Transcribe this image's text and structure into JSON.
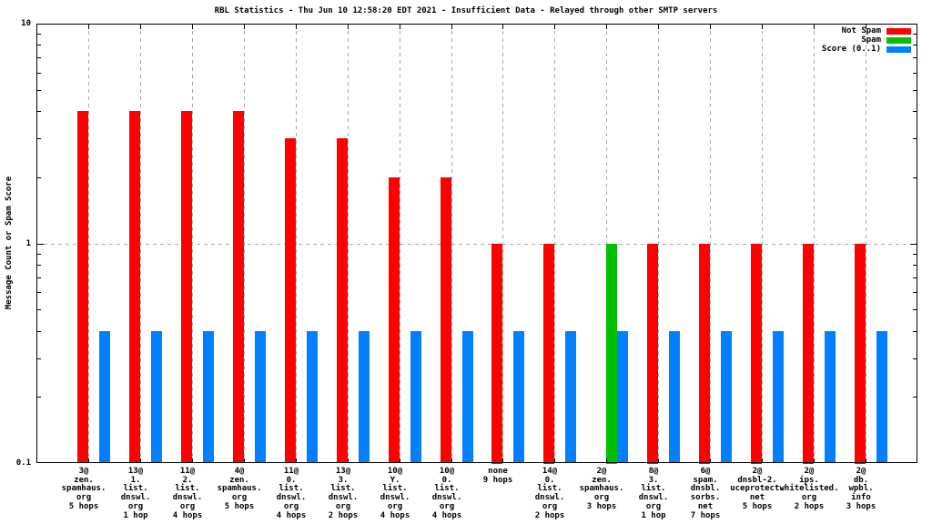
{
  "chart_data": {
    "type": "bar",
    "title": "RBL Statistics - Thu Jun 10 12:58:20 EDT 2021 - Insufficient Data - Relayed through other SMTP servers",
    "xlabel": "",
    "ylabel": "Message Count or Spam Score",
    "y_scale": "log",
    "ylim": [
      0.1,
      10
    ],
    "yticks": [
      {
        "value": 10,
        "label": "10"
      },
      {
        "value": 1,
        "label": "1"
      },
      {
        "value": 0.1,
        "label": "0.1"
      }
    ],
    "grid": {
      "vertical_per_category": true,
      "horizontal_values": [
        1
      ],
      "style": "dashed-gray"
    },
    "legend_position": "top-right-inside",
    "categories": [
      [
        "3@",
        "zen.",
        "spamhaus.",
        "org",
        "5 hops"
      ],
      [
        "13@",
        "1.",
        "list.",
        "dnswl.",
        "org",
        "1 hop"
      ],
      [
        "11@",
        "2.",
        "list.",
        "dnswl.",
        "org",
        "4 hops"
      ],
      [
        "4@",
        "zen.",
        "spamhaus.",
        "org",
        "5 hops"
      ],
      [
        "11@",
        "0.",
        "list.",
        "dnswl.",
        "org",
        "4 hops"
      ],
      [
        "13@",
        "3.",
        "list.",
        "dnswl.",
        "org",
        "2 hops"
      ],
      [
        "10@",
        "Y.",
        "list.",
        "dnswl.",
        "org",
        "4 hops"
      ],
      [
        "10@",
        "0.",
        "list.",
        "dnswl.",
        "org",
        "4 hops"
      ],
      [
        "none",
        "9 hops"
      ],
      [
        "14@",
        "0.",
        "list.",
        "dnswl.",
        "org",
        "2 hops"
      ],
      [
        "2@",
        "zen.",
        "spamhaus.",
        "org",
        "3 hops"
      ],
      [
        "8@",
        "3.",
        "list.",
        "dnswl.",
        "org",
        "1 hop"
      ],
      [
        "6@",
        "spam.",
        "dnsbl.",
        "sorbs.",
        "net",
        "7 hops"
      ],
      [
        "2@",
        "dnsbl-2.",
        "uceprotect.",
        "net",
        "5 hops"
      ],
      [
        "2@",
        "ips.",
        "whitelisted.",
        "org",
        "2 hops"
      ],
      [
        "2@",
        "db.",
        "wpbl.",
        "info",
        "3 hops"
      ]
    ],
    "series": [
      {
        "name": "Not Spam",
        "color": "#ff0000",
        "values": [
          4,
          4,
          4,
          4,
          3,
          3,
          2,
          2,
          1,
          1,
          null,
          1,
          1,
          1,
          1,
          1
        ]
      },
      {
        "name": "Spam",
        "color": "#00c000",
        "values": [
          null,
          null,
          null,
          null,
          null,
          null,
          null,
          null,
          null,
          null,
          1,
          null,
          null,
          null,
          null,
          null
        ]
      },
      {
        "name": "Score (0..1)",
        "color": "#0080ff",
        "values": [
          0.4,
          0.4,
          0.4,
          0.4,
          0.4,
          0.4,
          0.4,
          0.4,
          0.4,
          0.4,
          0.4,
          0.4,
          0.4,
          0.4,
          0.4,
          0.4
        ]
      }
    ]
  }
}
